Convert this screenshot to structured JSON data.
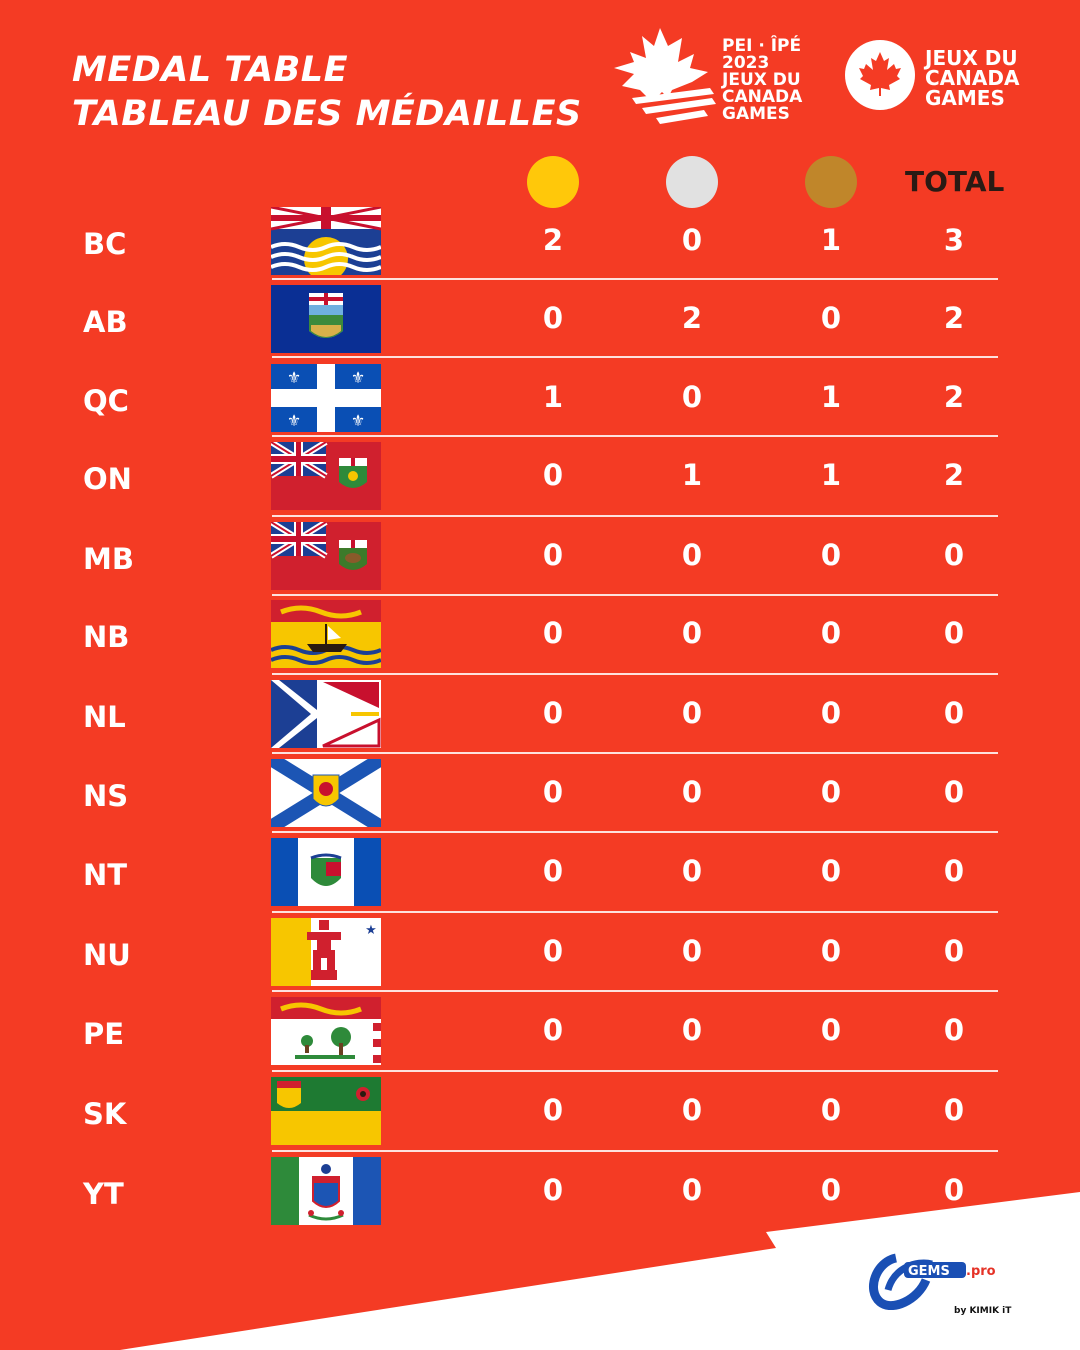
{
  "title": {
    "line1": "MEDAL TABLE",
    "line2": "TABLEAU DES MÉDAILLES"
  },
  "logos": {
    "pei": [
      "PEI · ÎPÉ",
      "2023",
      "JEUX DU",
      "CANADA",
      "GAMES"
    ],
    "canada_games": [
      "JEUX DU",
      "CANADA",
      "GAMES"
    ],
    "gems": "GEMS.pro",
    "gems_by": "by KIMIK iT"
  },
  "header": {
    "gold_color": "#ffc80a",
    "silver_color": "#e1e1e1",
    "bronze_color": "#c0862a",
    "total_label": "TOTAL"
  },
  "rows": [
    {
      "code": "BC",
      "flag": "bc-flag",
      "gold": "2",
      "silver": "0",
      "bronze": "1",
      "total": "3"
    },
    {
      "code": "AB",
      "flag": "ab-flag",
      "gold": "0",
      "silver": "2",
      "bronze": "0",
      "total": "2"
    },
    {
      "code": "QC",
      "flag": "qc-flag",
      "gold": "1",
      "silver": "0",
      "bronze": "1",
      "total": "2"
    },
    {
      "code": "ON",
      "flag": "on-flag",
      "gold": "0",
      "silver": "1",
      "bronze": "1",
      "total": "2"
    },
    {
      "code": "MB",
      "flag": "mb-flag",
      "gold": "0",
      "silver": "0",
      "bronze": "0",
      "total": "0"
    },
    {
      "code": "NB",
      "flag": "nb-flag",
      "gold": "0",
      "silver": "0",
      "bronze": "0",
      "total": "0"
    },
    {
      "code": "NL",
      "flag": "nl-flag",
      "gold": "0",
      "silver": "0",
      "bronze": "0",
      "total": "0"
    },
    {
      "code": "NS",
      "flag": "ns-flag",
      "gold": "0",
      "silver": "0",
      "bronze": "0",
      "total": "0"
    },
    {
      "code": "NT",
      "flag": "nt-flag",
      "gold": "0",
      "silver": "0",
      "bronze": "0",
      "total": "0"
    },
    {
      "code": "NU",
      "flag": "nu-flag",
      "gold": "0",
      "silver": "0",
      "bronze": "0",
      "total": "0"
    },
    {
      "code": "PE",
      "flag": "pe-flag",
      "gold": "0",
      "silver": "0",
      "bronze": "0",
      "total": "0"
    },
    {
      "code": "SK",
      "flag": "sk-flag",
      "gold": "0",
      "silver": "0",
      "bronze": "0",
      "total": "0"
    },
    {
      "code": "YT",
      "flag": "yt-flag",
      "gold": "0",
      "silver": "0",
      "bronze": "0",
      "total": "0"
    }
  ]
}
